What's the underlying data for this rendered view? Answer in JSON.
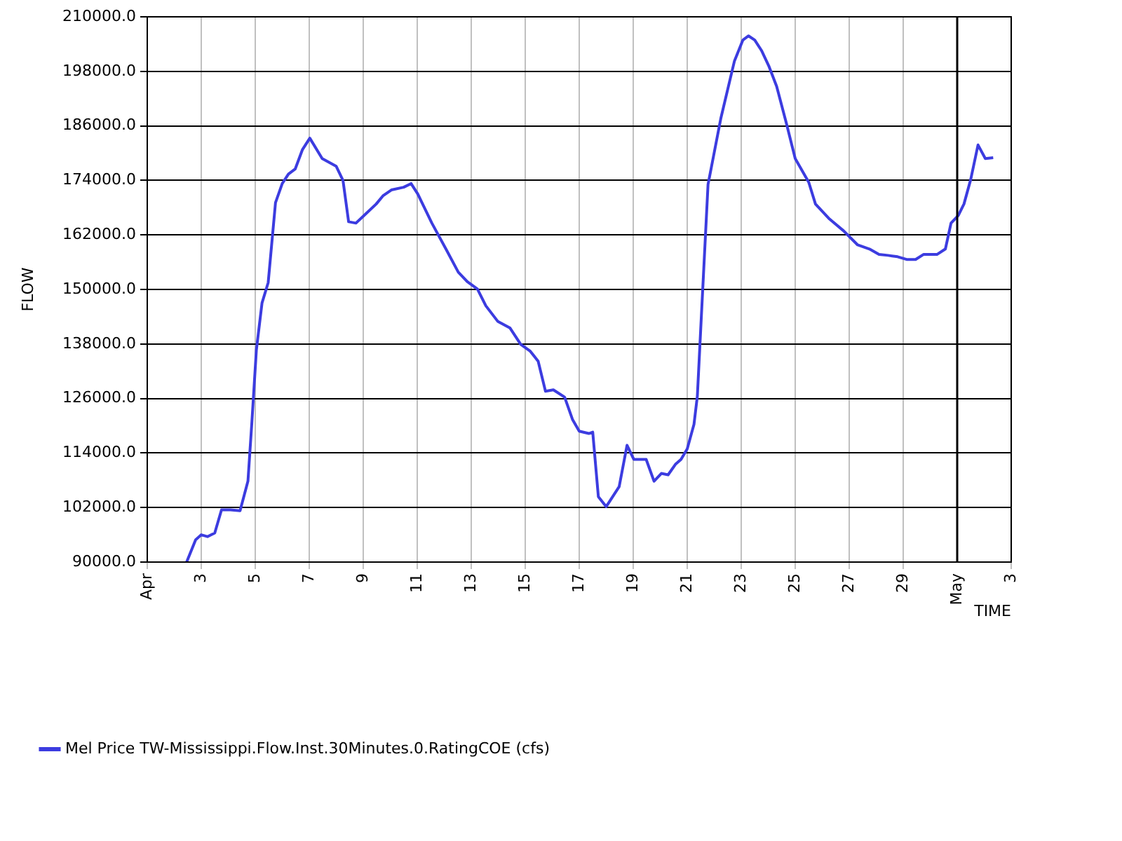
{
  "chart_data": {
    "type": "line",
    "xlabel": "TIME",
    "ylabel": "FLOW",
    "xlim": [
      "--04-01",
      "--05-03"
    ],
    "xticks": [
      {
        "value": "--04-01",
        "label": "Apr"
      },
      {
        "value": "--04-03",
        "label": "3"
      },
      {
        "value": "--04-05",
        "label": "5"
      },
      {
        "value": "--04-07",
        "label": "7"
      },
      {
        "value": "--04-09",
        "label": "9"
      },
      {
        "value": "--04-11",
        "label": "11"
      },
      {
        "value": "--04-13",
        "label": "13"
      },
      {
        "value": "--04-15",
        "label": "15"
      },
      {
        "value": "--04-17",
        "label": "17"
      },
      {
        "value": "--04-19",
        "label": "19"
      },
      {
        "value": "--04-21",
        "label": "21"
      },
      {
        "value": "--04-23",
        "label": "23"
      },
      {
        "value": "--04-25",
        "label": "25"
      },
      {
        "value": "--04-27",
        "label": "27"
      },
      {
        "value": "--04-29",
        "label": "29"
      },
      {
        "value": "--05-01",
        "label": "May"
      },
      {
        "value": "--05-03",
        "label": "3"
      }
    ],
    "ylim": [
      90000,
      210000
    ],
    "yticks": [
      {
        "value": 90000,
        "label": "90000.0"
      },
      {
        "value": 102000,
        "label": "102000.0"
      },
      {
        "value": 114000,
        "label": "114000.0"
      },
      {
        "value": 126000,
        "label": "126000.0"
      },
      {
        "value": 138000,
        "label": "138000.0"
      },
      {
        "value": 150000,
        "label": "150000.0"
      },
      {
        "value": 162000,
        "label": "162000.0"
      },
      {
        "value": 174000,
        "label": "174000.0"
      },
      {
        "value": 186000,
        "label": "186000.0"
      },
      {
        "value": 198000,
        "label": "198000.0"
      },
      {
        "value": 210000,
        "label": "210000.0"
      }
    ],
    "grid": true,
    "legend": "bottom left",
    "marker": "none",
    "line_style": "solid",
    "ref_lines": [
      {
        "axis": "x",
        "value": "--05-01",
        "color": "#000000"
      }
    ],
    "x": [
      "--04-02T11:00",
      "--04-02T19:00",
      "--04-03T00:00",
      "--04-03T05:30",
      "--04-03T12:00",
      "--04-03T18:00",
      "--04-04T02:00",
      "--04-04T10:30",
      "--04-04T17:30",
      "--04-04T21:00",
      "--04-05T01:00",
      "--04-05T06:00",
      "--04-05T11:30",
      "--04-05T18:00",
      "--04-06T00:00",
      "--04-06T05:30",
      "--04-06T11:30",
      "--04-06T18:00",
      "--04-07T00:30",
      "--04-07T11:30",
      "--04-08T00:00",
      "--04-08T06:00",
      "--04-08T11:00",
      "--04-08T17:30",
      "--04-09T03:00",
      "--04-09T11:30",
      "--04-09T17:30",
      "--04-10T01:00",
      "--04-10T12:00",
      "--04-10T18:30",
      "--04-11T00:30",
      "--04-11T13:00",
      "--04-12T01:30",
      "--04-12T12:30",
      "--04-12T20:30",
      "--04-13T05:30",
      "--04-13T13:00",
      "--04-13T23:30",
      "--04-14T10:30",
      "--04-14T20:00",
      "--04-15T04:30",
      "--04-15T11:30",
      "--04-15T18:00",
      "--04-16T01:00",
      "--04-16T11:00",
      "--04-16T18:00",
      "--04-17T00:00",
      "--04-17T08:30",
      "--04-17T12:00",
      "--04-17T17:00",
      "--04-18T00:00",
      "--04-18T11:30",
      "--04-18T18:30",
      "--04-19T00:30",
      "--04-19T11:30",
      "--04-19T18:30",
      "--04-20T01:00",
      "--04-20T07:00",
      "--04-20T13:30",
      "--04-20T18:30",
      "--04-21T00:00",
      "--04-21T06:00",
      "--04-21T09:00",
      "--04-21T12:00",
      "--04-21T18:30",
      "--04-22T06:00",
      "--04-22T18:00",
      "--04-23T01:30",
      "--04-23T06:30",
      "--04-23T12:00",
      "--04-23T18:00",
      "--04-24T00:30",
      "--04-24T07:30",
      "--04-24T16:00",
      "--04-25T00:00",
      "--04-25T12:00",
      "--04-25T18:00",
      "--04-26T06:30",
      "--04-26T19:00",
      "--04-27T07:30",
      "--04-27T18:00",
      "--04-28T02:30",
      "--04-28T10:30",
      "--04-28T19:00",
      "--04-29T03:00",
      "--04-29T11:00",
      "--04-29T18:00",
      "--04-30T06:00",
      "--04-30T13:30",
      "--04-30T18:30",
      "--05-01T01:00",
      "--05-01T06:00",
      "--05-01T12:00",
      "--05-01T18:30",
      "--05-02T01:00",
      "--05-02T08:00"
    ],
    "series": [
      {
        "name": "Mel Price TW-Mississippi.Flow.Inst.30Minutes.0.RatingCOE (cfs)",
        "color": "#3c3ce0",
        "values": [
          90000,
          94900,
          96000,
          95600,
          96400,
          101500,
          101500,
          101300,
          107800,
          120800,
          136700,
          147000,
          151500,
          169100,
          173300,
          175400,
          176500,
          180800,
          183300,
          178800,
          177100,
          174000,
          164900,
          164600,
          166800,
          168800,
          170600,
          171900,
          172500,
          173300,
          171000,
          164600,
          158900,
          153800,
          151700,
          150100,
          146400,
          143000,
          141500,
          137900,
          136400,
          134200,
          127600,
          127900,
          126300,
          121400,
          118800,
          118300,
          118600,
          104400,
          102200,
          106600,
          115700,
          112600,
          112600,
          107800,
          109500,
          109200,
          111500,
          112600,
          114900,
          120300,
          126500,
          141300,
          173100,
          187800,
          200300,
          204900,
          205800,
          204900,
          202600,
          199200,
          194700,
          186700,
          178800,
          173600,
          168800,
          165500,
          162900,
          159800,
          158900,
          157700,
          157500,
          157200,
          156600,
          156600,
          157700,
          157700,
          158900,
          164600,
          166300,
          168800,
          174200,
          181800,
          178800,
          179000
        ]
      }
    ]
  }
}
